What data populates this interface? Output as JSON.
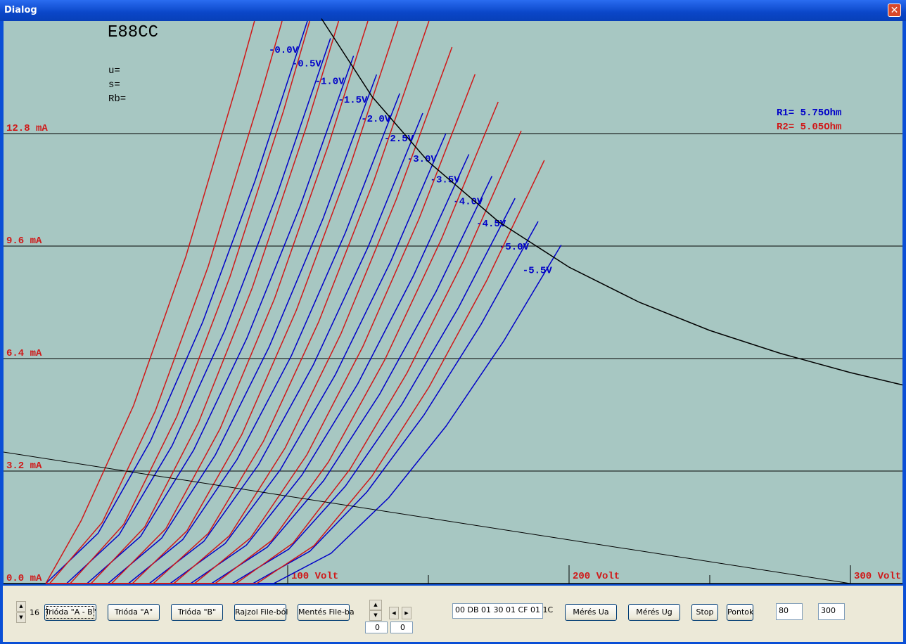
{
  "window": {
    "title": "Dialog"
  },
  "chart_data": {
    "type": "line",
    "title": "E88CC",
    "annotations": [
      "u=",
      "s=",
      "Rb="
    ],
    "legend": [
      {
        "text": "R1= 5.75Ohm",
        "color": "#0000c8"
      },
      {
        "text": "R2= 5.05Ohm",
        "color": "#d01818"
      }
    ],
    "xlim": [
      -1,
      318.5
    ],
    "ylim": [
      0,
      16
    ],
    "xticks": [
      {
        "value": 100,
        "label": "100 Volt"
      },
      {
        "value": 200,
        "label": "200 Volt"
      },
      {
        "value": 300,
        "label": "300 Volt"
      }
    ],
    "xminor_ticks": [
      150,
      250
    ],
    "yticks": [
      {
        "value": 0,
        "label": "0.0 mA"
      },
      {
        "value": 3.2,
        "label": "3.2 mA"
      },
      {
        "value": 6.4,
        "label": "6.4 mA"
      },
      {
        "value": 9.6,
        "label": "9.6 mA"
      },
      {
        "value": 12.8,
        "label": "12.8 mA"
      }
    ],
    "grid": true,
    "series": [
      {
        "name": "-0.0V",
        "color": "#0000c8",
        "x": [
          14,
          32.6,
          51.2,
          69.8,
          88.4,
          107
        ],
        "values": [
          0,
          1.43,
          4.05,
          7.44,
          11.46,
          16.0
        ]
      },
      {
        "name": "-0.5V",
        "color": "#0000c8",
        "x": [
          14,
          21.4,
          40.1,
          58.9,
          77.7,
          96.4,
          115.2
        ],
        "values": [
          0,
          0,
          1.39,
          3.92,
          7.21,
          11.11,
          15.51
        ]
      },
      {
        "name": "-1.0V",
        "color": "#0000c8",
        "x": [
          14,
          28.7,
          47.7,
          66.6,
          85.5,
          104.5,
          123.4
        ],
        "values": [
          0,
          0,
          1.34,
          3.8,
          6.98,
          10.75,
          15.01
        ]
      },
      {
        "name": "-1.5V",
        "color": "#0000c8",
        "x": [
          14,
          36.1,
          55.2,
          74.3,
          93.4,
          112.5,
          131.6
        ],
        "values": [
          0,
          0,
          1.29,
          3.66,
          6.73,
          10.37,
          14.48
        ]
      },
      {
        "name": "-2.0V",
        "color": "#0000c8",
        "x": [
          14,
          43.4,
          62.7,
          82.0,
          101.3,
          120.5,
          139.8
        ],
        "values": [
          0,
          0,
          1.25,
          3.53,
          6.48,
          9.98,
          13.94
        ]
      },
      {
        "name": "-2.5V",
        "color": "#0000c8",
        "x": [
          14,
          50.8,
          70.2,
          89.7,
          109.1,
          128.6,
          148.0
        ],
        "values": [
          0,
          0,
          1.2,
          3.39,
          6.22,
          9.58,
          13.38
        ]
      },
      {
        "name": "-3.0V",
        "color": "#0000c8",
        "x": [
          14,
          58.2,
          77.8,
          97.4,
          117.0,
          136.6,
          156.2
        ],
        "values": [
          0,
          0,
          1.14,
          3.24,
          5.95,
          9.16,
          12.8
        ]
      },
      {
        "name": "-3.5V",
        "color": "#0000c8",
        "x": [
          14,
          65.5,
          85.3,
          105.1,
          124.9,
          144.6,
          164.4
        ],
        "values": [
          0,
          0,
          1.09,
          3.09,
          5.68,
          8.74,
          12.21
        ]
      },
      {
        "name": "-4.0V",
        "color": "#0000c8",
        "x": [
          14,
          72.9,
          92.8,
          112.8,
          132.7,
          152.7,
          172.6
        ],
        "values": [
          0,
          0,
          1.04,
          2.93,
          5.39,
          8.3,
          11.59
        ]
      },
      {
        "name": "-4.5V",
        "color": "#0000c8",
        "x": [
          14,
          80.2,
          100.4,
          120.5,
          140.6,
          160.7,
          180.8
        ],
        "values": [
          0,
          0,
          0.98,
          2.77,
          5.1,
          7.85,
          10.96
        ]
      },
      {
        "name": "-5.0V",
        "color": "#0000c8",
        "x": [
          14,
          87.6,
          107.9,
          128.2,
          148.4,
          168.7,
          189.0
        ],
        "values": [
          0,
          0,
          0.92,
          2.61,
          4.79,
          7.37,
          10.3
        ]
      },
      {
        "name": "-5.5V",
        "color": "#0000c8",
        "x": [
          14,
          95.0,
          115.4,
          135.9,
          156.3,
          176.8,
          197.2
        ],
        "values": [
          0,
          0,
          0.86,
          2.44,
          4.48,
          6.9,
          9.63
        ]
      },
      {
        "color": "#d01818",
        "x": [
          14,
          26.6,
          45.2,
          63.8,
          82.4,
          88.2
        ],
        "values": [
          0,
          1.79,
          5.06,
          9.3,
          14.33,
          16
        ]
      },
      {
        "color": "#d01818",
        "x": [
          14,
          15.4,
          34.1,
          52.9,
          71.7,
          90.4,
          98.0
        ],
        "values": [
          0,
          0,
          1.74,
          4.9,
          9.01,
          13.89,
          16
        ]
      },
      {
        "color": "#d01818",
        "x": [
          14,
          22.7,
          41.7,
          60.6,
          79.5,
          98.5,
          107.8
        ],
        "values": [
          0,
          0,
          1.68,
          4.75,
          8.73,
          13.44,
          16
        ]
      },
      {
        "color": "#d01818",
        "x": [
          14,
          30.1,
          49.2,
          68.3,
          87.4,
          106.5,
          118.1
        ],
        "values": [
          0,
          0,
          1.61,
          4.58,
          8.41,
          12.96,
          16
        ]
      },
      {
        "color": "#d01818",
        "x": [
          14,
          37.4,
          56.7,
          76.0,
          95.3,
          114.5,
          128.5
        ],
        "values": [
          0,
          0,
          1.56,
          4.41,
          8.1,
          12.48,
          16
        ]
      },
      {
        "color": "#d01818",
        "x": [
          14,
          44.8,
          64.2,
          83.7,
          103.1,
          122.6,
          139.2
        ],
        "values": [
          0,
          0,
          1.5,
          4.24,
          7.78,
          11.98,
          16
        ]
      },
      {
        "color": "#d01818",
        "x": [
          14,
          52.2,
          71.8,
          91.4,
          111.0,
          130.6,
          150.2
        ],
        "values": [
          0,
          0,
          1.43,
          4.05,
          7.44,
          11.45,
          16.0
        ]
      },
      {
        "color": "#d01818",
        "x": [
          14,
          59.5,
          79.3,
          99.1,
          118.9,
          138.6,
          158.4
        ],
        "values": [
          0,
          0,
          1.36,
          3.86,
          7.1,
          10.93,
          15.26
        ]
      },
      {
        "color": "#d01818",
        "x": [
          14,
          66.9,
          86.8,
          106.8,
          126.7,
          146.7,
          166.6
        ],
        "values": [
          0,
          0,
          1.3,
          3.66,
          6.74,
          10.38,
          14.49
        ]
      },
      {
        "color": "#d01818",
        "x": [
          14,
          74.2,
          94.4,
          114.5,
          134.6,
          154.7,
          174.8
        ],
        "values": [
          0,
          0,
          1.23,
          3.46,
          6.38,
          9.81,
          13.7
        ]
      },
      {
        "color": "#d01818",
        "x": [
          14,
          81.6,
          101.9,
          122.2,
          142.4,
          162.7,
          183.0
        ],
        "values": [
          0,
          0,
          1.15,
          3.26,
          5.99,
          9.21,
          12.88
        ]
      },
      {
        "color": "#d01818",
        "x": [
          14,
          89.0,
          109.4,
          129.9,
          150.3,
          170.8,
          191.2
        ],
        "values": [
          0,
          0,
          1.08,
          3.05,
          5.6,
          8.63,
          12.04
        ]
      },
      {
        "color": "#000000",
        "x": [
          112,
          130,
          150,
          175,
          200,
          225,
          250,
          275,
          300,
          318.5
        ],
        "values": [
          16.07,
          13.85,
          12.0,
          10.29,
          9.0,
          8.0,
          7.2,
          6.55,
          6.0,
          5.65
        ]
      },
      {
        "color": "#000000",
        "x": [
          -1,
          300
        ],
        "values": [
          3.74,
          0
        ]
      }
    ]
  },
  "controls": {
    "counter": "16",
    "buttons": [
      "Trióda \"A - B\"",
      "Trióda \"A\"",
      "Trióda \"B\"",
      "Rajzol File-ból",
      "Mentés File-ba"
    ],
    "spin_fields": [
      "0",
      "0"
    ],
    "hex": "00 DB 01 30 01 CF 01 1C",
    "buttons2": [
      "Mérés Ua",
      "Mérés Ug",
      "Stop",
      "Pontok"
    ],
    "inputs": [
      "80",
      "300"
    ]
  }
}
